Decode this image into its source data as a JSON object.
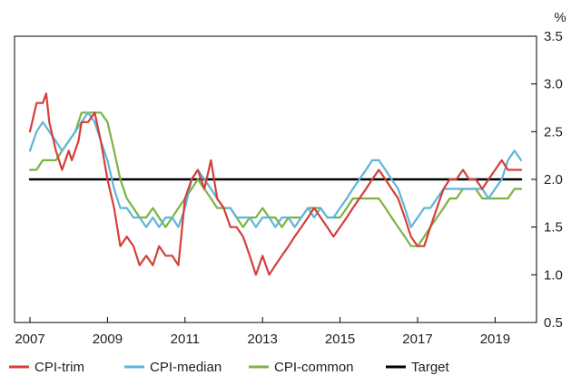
{
  "chart_data": {
    "type": "line",
    "y_unit_label": "%",
    "ylim": [
      0.5,
      3.5
    ],
    "yticks": [
      0.5,
      1.0,
      1.5,
      2.0,
      2.5,
      3.0,
      3.5
    ],
    "ytick_labels": [
      "0.5",
      "1.0",
      "1.5",
      "2.0",
      "2.5",
      "3.0",
      "3.5"
    ],
    "xlim": [
      2007.0,
      2019.67
    ],
    "xticks": [
      2007,
      2009,
      2011,
      2013,
      2015,
      2017,
      2019
    ],
    "xtick_labels": [
      "2007",
      "2009",
      "2011",
      "2013",
      "2015",
      "2017",
      "2019"
    ],
    "grid": false,
    "legend_position": "bottom",
    "series": [
      {
        "name": "CPI-trim",
        "color": "#d43f3a",
        "x": [
          2007.0,
          2007.17,
          2007.33,
          2007.42,
          2007.5,
          2007.67,
          2007.83,
          2008.0,
          2008.08,
          2008.25,
          2008.33,
          2008.5,
          2008.67,
          2008.83,
          2009.0,
          2009.17,
          2009.33,
          2009.5,
          2009.67,
          2009.83,
          2010.0,
          2010.17,
          2010.33,
          2010.5,
          2010.67,
          2010.83,
          2011.0,
          2011.17,
          2011.33,
          2011.5,
          2011.67,
          2011.83,
          2012.0,
          2012.17,
          2012.33,
          2012.5,
          2012.67,
          2012.83,
          2013.0,
          2013.17,
          2013.33,
          2013.5,
          2013.67,
          2013.83,
          2014.0,
          2014.17,
          2014.33,
          2014.5,
          2014.67,
          2014.83,
          2015.0,
          2015.17,
          2015.33,
          2015.5,
          2015.67,
          2015.83,
          2016.0,
          2016.17,
          2016.33,
          2016.5,
          2016.67,
          2016.83,
          2017.0,
          2017.17,
          2017.33,
          2017.5,
          2017.67,
          2017.83,
          2018.0,
          2018.17,
          2018.33,
          2018.5,
          2018.67,
          2018.83,
          2019.0,
          2019.17,
          2019.33,
          2019.5,
          2019.67
        ],
        "values": [
          2.5,
          2.8,
          2.8,
          2.9,
          2.6,
          2.3,
          2.1,
          2.3,
          2.2,
          2.4,
          2.6,
          2.6,
          2.7,
          2.4,
          2.0,
          1.7,
          1.3,
          1.4,
          1.3,
          1.1,
          1.2,
          1.1,
          1.3,
          1.2,
          1.2,
          1.1,
          1.8,
          2.0,
          2.1,
          1.9,
          2.2,
          1.8,
          1.7,
          1.5,
          1.5,
          1.4,
          1.2,
          1.0,
          1.2,
          1.0,
          1.1,
          1.2,
          1.3,
          1.4,
          1.5,
          1.6,
          1.7,
          1.6,
          1.5,
          1.4,
          1.5,
          1.6,
          1.7,
          1.8,
          1.9,
          2.0,
          2.1,
          2.0,
          1.9,
          1.8,
          1.6,
          1.4,
          1.3,
          1.3,
          1.5,
          1.7,
          1.9,
          2.0,
          2.0,
          2.1,
          2.0,
          2.0,
          1.9,
          2.0,
          2.1,
          2.2,
          2.1,
          2.1,
          2.1
        ]
      },
      {
        "name": "CPI-median",
        "color": "#5fb5d9",
        "x": [
          2007.0,
          2007.17,
          2007.33,
          2007.5,
          2007.67,
          2007.83,
          2008.0,
          2008.17,
          2008.33,
          2008.5,
          2008.67,
          2008.83,
          2009.0,
          2009.17,
          2009.33,
          2009.5,
          2009.67,
          2009.83,
          2010.0,
          2010.17,
          2010.33,
          2010.5,
          2010.67,
          2010.83,
          2011.0,
          2011.17,
          2011.33,
          2011.5,
          2011.67,
          2011.83,
          2012.0,
          2012.17,
          2012.33,
          2012.5,
          2012.67,
          2012.83,
          2013.0,
          2013.17,
          2013.33,
          2013.5,
          2013.67,
          2013.83,
          2014.0,
          2014.17,
          2014.33,
          2014.5,
          2014.67,
          2014.83,
          2015.0,
          2015.17,
          2015.33,
          2015.5,
          2015.67,
          2015.83,
          2016.0,
          2016.17,
          2016.33,
          2016.5,
          2016.67,
          2016.83,
          2017.0,
          2017.17,
          2017.33,
          2017.5,
          2017.67,
          2017.83,
          2018.0,
          2018.17,
          2018.33,
          2018.5,
          2018.67,
          2018.83,
          2019.0,
          2019.17,
          2019.33,
          2019.5,
          2019.67
        ],
        "values": [
          2.3,
          2.5,
          2.6,
          2.5,
          2.4,
          2.3,
          2.4,
          2.5,
          2.6,
          2.7,
          2.6,
          2.4,
          2.2,
          1.9,
          1.7,
          1.7,
          1.6,
          1.6,
          1.5,
          1.6,
          1.5,
          1.6,
          1.6,
          1.5,
          1.7,
          2.0,
          2.1,
          2.0,
          1.9,
          1.8,
          1.7,
          1.7,
          1.6,
          1.6,
          1.6,
          1.5,
          1.6,
          1.6,
          1.5,
          1.6,
          1.6,
          1.5,
          1.6,
          1.7,
          1.6,
          1.7,
          1.6,
          1.6,
          1.7,
          1.8,
          1.9,
          2.0,
          2.1,
          2.2,
          2.2,
          2.1,
          2.0,
          1.9,
          1.7,
          1.5,
          1.6,
          1.7,
          1.7,
          1.8,
          1.9,
          1.9,
          1.9,
          1.9,
          1.9,
          1.9,
          1.9,
          1.8,
          1.9,
          2.0,
          2.2,
          2.3,
          2.2
        ]
      },
      {
        "name": "CPI-common",
        "color": "#7cb342",
        "x": [
          2007.0,
          2007.17,
          2007.33,
          2007.5,
          2007.67,
          2007.83,
          2008.0,
          2008.17,
          2008.33,
          2008.5,
          2008.67,
          2008.83,
          2009.0,
          2009.17,
          2009.33,
          2009.5,
          2009.67,
          2009.83,
          2010.0,
          2010.17,
          2010.33,
          2010.5,
          2010.67,
          2010.83,
          2011.0,
          2011.17,
          2011.33,
          2011.5,
          2011.67,
          2011.83,
          2012.0,
          2012.17,
          2012.33,
          2012.5,
          2012.67,
          2012.83,
          2013.0,
          2013.17,
          2013.33,
          2013.5,
          2013.67,
          2013.83,
          2014.0,
          2014.17,
          2014.33,
          2014.5,
          2014.67,
          2014.83,
          2015.0,
          2015.17,
          2015.33,
          2015.5,
          2015.67,
          2015.83,
          2016.0,
          2016.17,
          2016.33,
          2016.5,
          2016.67,
          2016.83,
          2017.0,
          2017.17,
          2017.33,
          2017.5,
          2017.67,
          2017.83,
          2018.0,
          2018.17,
          2018.33,
          2018.5,
          2018.67,
          2018.83,
          2019.0,
          2019.17,
          2019.33,
          2019.5,
          2019.67
        ],
        "values": [
          2.1,
          2.1,
          2.2,
          2.2,
          2.2,
          2.3,
          2.4,
          2.5,
          2.7,
          2.7,
          2.7,
          2.7,
          2.6,
          2.3,
          2.0,
          1.8,
          1.7,
          1.6,
          1.6,
          1.7,
          1.6,
          1.5,
          1.6,
          1.7,
          1.8,
          1.9,
          2.0,
          1.9,
          1.8,
          1.7,
          1.7,
          1.7,
          1.6,
          1.5,
          1.6,
          1.6,
          1.7,
          1.6,
          1.6,
          1.5,
          1.6,
          1.6,
          1.6,
          1.7,
          1.7,
          1.7,
          1.6,
          1.6,
          1.6,
          1.7,
          1.8,
          1.8,
          1.8,
          1.8,
          1.8,
          1.7,
          1.6,
          1.5,
          1.4,
          1.3,
          1.3,
          1.4,
          1.5,
          1.6,
          1.7,
          1.8,
          1.8,
          1.9,
          1.9,
          1.9,
          1.8,
          1.8,
          1.8,
          1.8,
          1.8,
          1.9,
          1.9
        ]
      },
      {
        "name": "Target",
        "color": "#000000",
        "x": [
          2007.0,
          2019.67
        ],
        "values": [
          2.0,
          2.0
        ]
      }
    ]
  }
}
